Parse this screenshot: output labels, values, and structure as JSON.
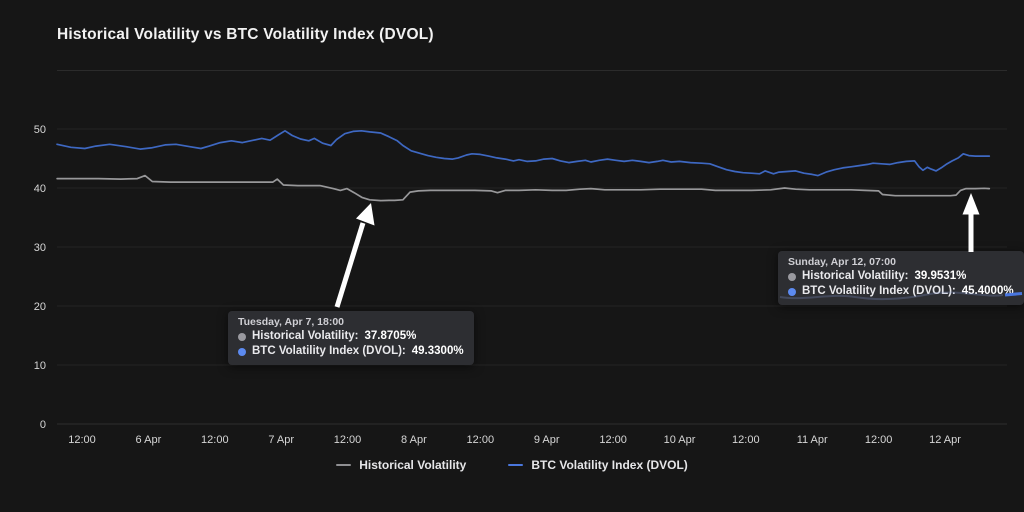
{
  "title": "Historical Volatility vs BTC Volatility Index (DVOL)",
  "colors": {
    "background": "#161616",
    "grid": "#242424",
    "axis_zero_line": "#2e2e2e",
    "axis_text": "#d6d6d6",
    "historical": "#98989a",
    "dvol": "#3e68c2",
    "dot_gray": "#9a9aa0",
    "dot_blue": "#5c8af0",
    "arrow": "#ffffff",
    "tooltip_bg": "#2d2e32",
    "artifact_blue": "#4a79e8"
  },
  "legend": [
    {
      "label": "Historical Volatility",
      "color": "#8f8f92"
    },
    {
      "label": "BTC Volatility Index (DVOL)",
      "color": "#4a77dd"
    }
  ],
  "tooltips": [
    {
      "date": "Tuesday, Apr 7, 18:00",
      "rows": [
        {
          "label": "Historical Volatility:",
          "value": "37.8705%",
          "dot": "#9a9aa0"
        },
        {
          "label": "BTC Volatility Index (DVOL):",
          "value": "49.3300%",
          "dot": "#5c8af0"
        }
      ]
    },
    {
      "date": "Sunday, Apr 12, 07:00",
      "rows": [
        {
          "label": "Historical Volatility:",
          "value": "39.9531%",
          "dot": "#9a9aa0"
        },
        {
          "label": "BTC Volatility Index (DVOL):",
          "value": "45.4000%",
          "dot": "#5c8af0"
        }
      ]
    }
  ],
  "chart_data": {
    "type": "line",
    "title": "Historical Volatility vs BTC Volatility Index (DVOL)",
    "x_unit": "hours since Apr 5 00:00 (UTC)",
    "x_ticks": [
      {
        "t": 12,
        "label": "12:00"
      },
      {
        "t": 24,
        "label": "6 Apr"
      },
      {
        "t": 36,
        "label": "12:00"
      },
      {
        "t": 48,
        "label": "7 Apr"
      },
      {
        "t": 60,
        "label": "12:00"
      },
      {
        "t": 72,
        "label": "8 Apr"
      },
      {
        "t": 84,
        "label": "12:00"
      },
      {
        "t": 96,
        "label": "9 Apr"
      },
      {
        "t": 108,
        "label": "12:00"
      },
      {
        "t": 120,
        "label": "10 Apr"
      },
      {
        "t": 132,
        "label": "12:00"
      },
      {
        "t": 144,
        "label": "11 Apr"
      },
      {
        "t": 156,
        "label": "12:00"
      },
      {
        "t": 168,
        "label": "12 Apr"
      }
    ],
    "y_ticks": [
      0,
      10,
      20,
      30,
      40,
      50
    ],
    "ylim": [
      0,
      52
    ],
    "grid": "horizontal-only",
    "legend_position": "bottom-center",
    "series": [
      {
        "name": "Historical Volatility",
        "color": "#98989a",
        "points": [
          [
            7.5,
            41.6
          ],
          [
            11,
            41.6
          ],
          [
            15,
            41.6
          ],
          [
            19,
            41.5
          ],
          [
            22,
            41.6
          ],
          [
            23.4,
            42.1
          ],
          [
            24.7,
            41.1
          ],
          [
            28,
            41.0
          ],
          [
            32,
            41.0
          ],
          [
            36,
            41.0
          ],
          [
            40,
            41.0
          ],
          [
            44,
            41.0
          ],
          [
            46.5,
            41.0
          ],
          [
            47.3,
            41.5
          ],
          [
            48.4,
            40.5
          ],
          [
            51,
            40.4
          ],
          [
            55,
            40.4
          ],
          [
            57.4,
            39.9
          ],
          [
            58.7,
            39.6
          ],
          [
            59.9,
            39.9
          ],
          [
            61.2,
            39.2
          ],
          [
            62.6,
            38.4
          ],
          [
            64,
            38.0
          ],
          [
            66,
            37.87
          ],
          [
            67.5,
            37.9
          ],
          [
            68.5,
            37.9
          ],
          [
            70,
            38.0
          ],
          [
            71.3,
            39.3
          ],
          [
            72.8,
            39.5
          ],
          [
            75,
            39.6
          ],
          [
            78,
            39.6
          ],
          [
            80.5,
            39.6
          ],
          [
            83,
            39.6
          ],
          [
            86,
            39.5
          ],
          [
            87.1,
            39.2
          ],
          [
            88.5,
            39.6
          ],
          [
            91,
            39.6
          ],
          [
            94,
            39.7
          ],
          [
            97,
            39.6
          ],
          [
            99.5,
            39.6
          ],
          [
            102,
            39.8
          ],
          [
            104,
            39.9
          ],
          [
            106.5,
            39.7
          ],
          [
            109,
            39.7
          ],
          [
            113,
            39.7
          ],
          [
            116.5,
            39.8
          ],
          [
            120,
            39.8
          ],
          [
            124,
            39.8
          ],
          [
            126.5,
            39.6
          ],
          [
            129,
            39.6
          ],
          [
            133,
            39.6
          ],
          [
            136.5,
            39.7
          ],
          [
            139,
            40.0
          ],
          [
            141,
            39.8
          ],
          [
            143.5,
            39.7
          ],
          [
            147,
            39.7
          ],
          [
            151,
            39.7
          ],
          [
            153.5,
            39.6
          ],
          [
            156,
            39.5
          ],
          [
            156.7,
            38.9
          ],
          [
            159,
            38.7
          ],
          [
            162,
            38.7
          ],
          [
            165,
            38.7
          ],
          [
            167,
            38.7
          ],
          [
            169,
            38.7
          ],
          [
            170,
            38.8
          ],
          [
            170.8,
            39.6
          ],
          [
            171.8,
            39.9
          ],
          [
            173.5,
            39.9
          ],
          [
            175.1,
            39.95
          ],
          [
            176,
            39.9
          ]
        ]
      },
      {
        "name": "BTC Volatility Index (DVOL)",
        "color": "#3e68c2",
        "points": [
          [
            7.5,
            47.4
          ],
          [
            10,
            46.9
          ],
          [
            12.5,
            46.7
          ],
          [
            14.5,
            47.1
          ],
          [
            17,
            47.4
          ],
          [
            20,
            47.0
          ],
          [
            22.5,
            46.6
          ],
          [
            24.5,
            46.8
          ],
          [
            27,
            47.3
          ],
          [
            29,
            47.4
          ],
          [
            31.5,
            47.0
          ],
          [
            33.5,
            46.7
          ],
          [
            35,
            47.1
          ],
          [
            37,
            47.7
          ],
          [
            39,
            48.0
          ],
          [
            41,
            47.7
          ],
          [
            43,
            48.1
          ],
          [
            44.5,
            48.4
          ],
          [
            46,
            48.1
          ],
          [
            47.5,
            49.0
          ],
          [
            48.7,
            49.7
          ],
          [
            50,
            48.9
          ],
          [
            51.5,
            48.3
          ],
          [
            53,
            48.0
          ],
          [
            54,
            48.4
          ],
          [
            55.5,
            47.6
          ],
          [
            57,
            47.2
          ],
          [
            58,
            48.2
          ],
          [
            59.5,
            49.2
          ],
          [
            61,
            49.6
          ],
          [
            62.5,
            49.7
          ],
          [
            64,
            49.5
          ],
          [
            66,
            49.33
          ],
          [
            67.5,
            48.7
          ],
          [
            69,
            48.0
          ],
          [
            70,
            47.2
          ],
          [
            71.5,
            46.3
          ],
          [
            73,
            45.9
          ],
          [
            74.5,
            45.5
          ],
          [
            76,
            45.2
          ],
          [
            77.5,
            45.0
          ],
          [
            79,
            44.9
          ],
          [
            80,
            45.1
          ],
          [
            81.5,
            45.6
          ],
          [
            82.5,
            45.8
          ],
          [
            84,
            45.7
          ],
          [
            85.5,
            45.4
          ],
          [
            87,
            45.1
          ],
          [
            88.5,
            44.9
          ],
          [
            90,
            44.6
          ],
          [
            91,
            44.8
          ],
          [
            92.5,
            44.5
          ],
          [
            94,
            44.6
          ],
          [
            95.5,
            44.9
          ],
          [
            97,
            45.0
          ],
          [
            98.5,
            44.6
          ],
          [
            100,
            44.3
          ],
          [
            101.5,
            44.5
          ],
          [
            103,
            44.7
          ],
          [
            104,
            44.4
          ],
          [
            105.5,
            44.7
          ],
          [
            107,
            44.9
          ],
          [
            108.5,
            44.7
          ],
          [
            110,
            44.5
          ],
          [
            111.5,
            44.7
          ],
          [
            113,
            44.5
          ],
          [
            114.5,
            44.3
          ],
          [
            116,
            44.5
          ],
          [
            117,
            44.7
          ],
          [
            118.5,
            44.4
          ],
          [
            120,
            44.5
          ],
          [
            122,
            44.3
          ],
          [
            124,
            44.2
          ],
          [
            125.5,
            44.1
          ],
          [
            127,
            43.6
          ],
          [
            128.5,
            43.1
          ],
          [
            130,
            42.8
          ],
          [
            131.5,
            42.6
          ],
          [
            133,
            42.5
          ],
          [
            134.5,
            42.4
          ],
          [
            135.5,
            42.9
          ],
          [
            137,
            42.4
          ],
          [
            138,
            42.7
          ],
          [
            139.5,
            42.8
          ],
          [
            141,
            42.9
          ],
          [
            142.5,
            42.5
          ],
          [
            144,
            42.3
          ],
          [
            145,
            42.1
          ],
          [
            146.5,
            42.7
          ],
          [
            148,
            43.1
          ],
          [
            149.5,
            43.4
          ],
          [
            151,
            43.6
          ],
          [
            152.5,
            43.8
          ],
          [
            154,
            44.0
          ],
          [
            155,
            44.2
          ],
          [
            156.5,
            44.1
          ],
          [
            158,
            44.0
          ],
          [
            159.5,
            44.3
          ],
          [
            161,
            44.5
          ],
          [
            162.5,
            44.6
          ],
          [
            163.3,
            43.6
          ],
          [
            164,
            43.0
          ],
          [
            164.8,
            43.5
          ],
          [
            165.5,
            43.2
          ],
          [
            166.4,
            42.9
          ],
          [
            167.3,
            43.4
          ],
          [
            168.2,
            44.0
          ],
          [
            169.3,
            44.6
          ],
          [
            170.4,
            45.1
          ],
          [
            171.3,
            45.8
          ],
          [
            172.3,
            45.5
          ],
          [
            173.5,
            45.4
          ],
          [
            175.1,
            45.4
          ],
          [
            176,
            45.4
          ]
        ]
      }
    ],
    "annotations": [
      {
        "t": 66,
        "historical": 37.8705,
        "dvol": 49.33,
        "label": "Tuesday, Apr 7, 18:00"
      },
      {
        "t": 175.1,
        "historical": 39.9531,
        "dvol": 45.4,
        "label": "Sunday, Apr 12, 07:00"
      }
    ]
  }
}
